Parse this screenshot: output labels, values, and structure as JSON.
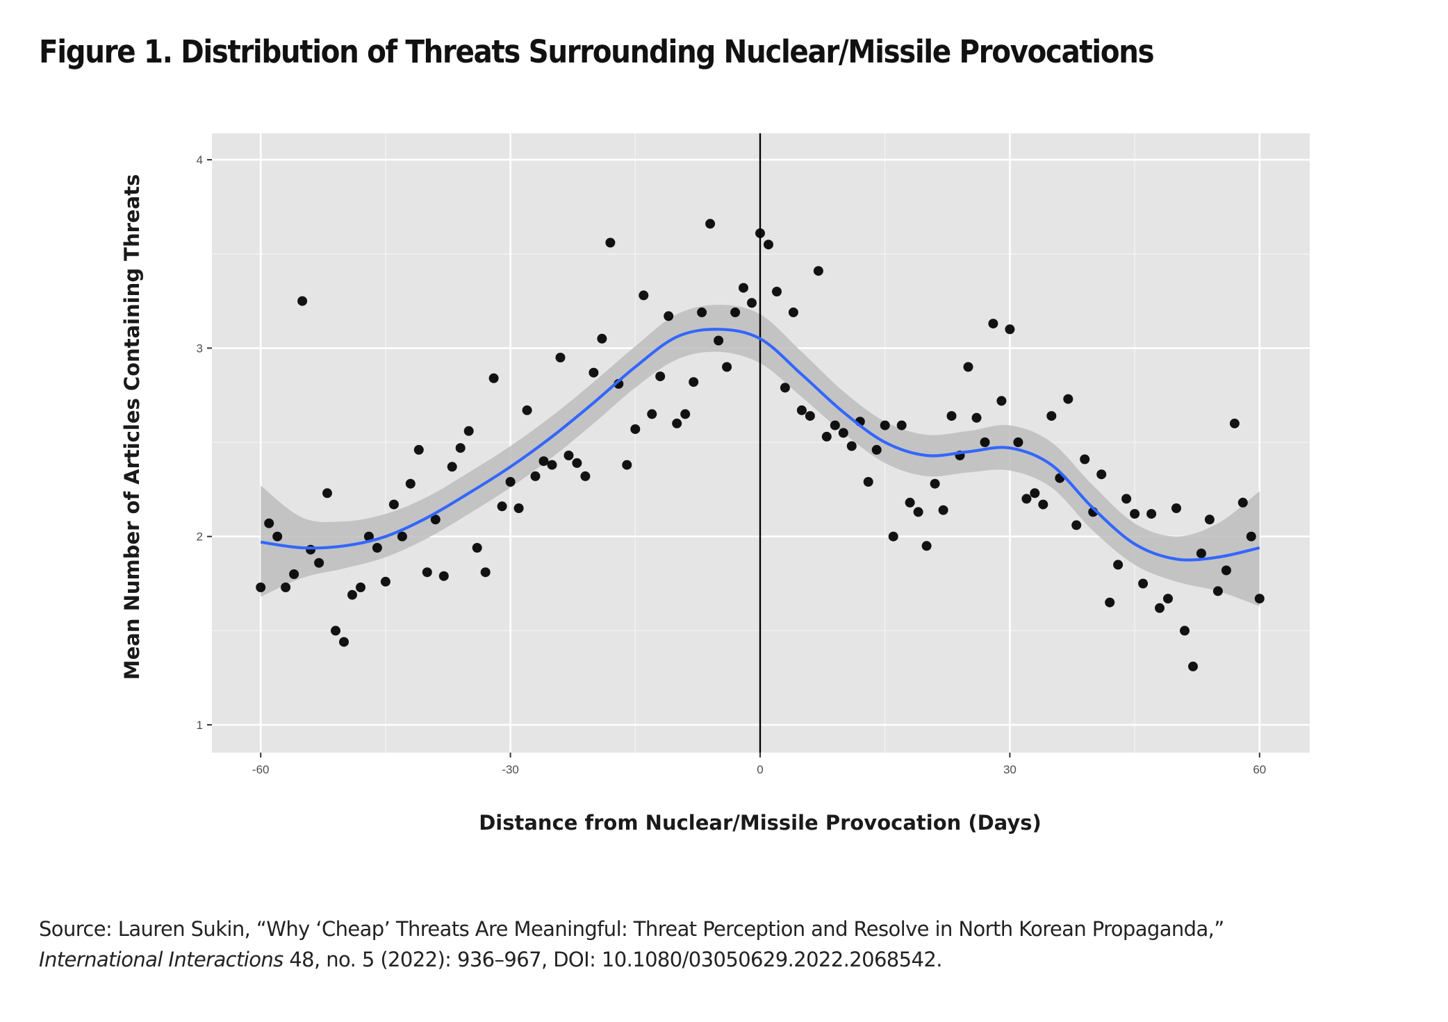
{
  "figure": {
    "title": "Figure 1. Distribution of Threats Surrounding Nuclear/Missile Provocations",
    "source_line1": "Source: Lauren Sukin, “Why ‘Cheap’ Threats Are Meaningful: Threat Perception and Resolve in North Korean Propaganda,”",
    "source_journal": "International Interactions",
    "source_line2_rest": " 48, no. 5 (2022): 936–967, DOI: 10.1080/03050629.2022.2068542."
  },
  "chart_data": {
    "type": "scatter",
    "title": "Figure 1. Distribution of Threats Surrounding Nuclear/Missile Provocations",
    "xlabel": "Distance from Nuclear/Missile Provocation (Days)",
    "ylabel": "Mean Number of Articles Containing Threats",
    "xlim": [
      -66,
      66
    ],
    "ylim": [
      0.87,
      4.15
    ],
    "xticks": [
      -60,
      -30,
      0,
      30,
      60
    ],
    "xtick_labels": [
      "-60",
      "-30",
      "0",
      "30",
      "60"
    ],
    "yticks": [
      1,
      2,
      3,
      4
    ],
    "ytick_labels": [
      "1",
      "2",
      "3",
      "4"
    ],
    "grid": true,
    "legend": "none",
    "reference_line": {
      "x": 0,
      "color": "#000000"
    },
    "colors": {
      "points": "#000000",
      "smooth": "#3366FF",
      "ribbon": "#bdbdbd",
      "panel": "#e5e5e5",
      "grid": "#ffffff"
    },
    "points": {
      "x": [
        -60,
        -59,
        -58,
        -57,
        -56,
        -55,
        -54,
        -53,
        -52,
        -51,
        -50,
        -49,
        -48,
        -47,
        -46,
        -45,
        -44,
        -43,
        -42,
        -41,
        -40,
        -39,
        -38,
        -37,
        -36,
        -35,
        -34,
        -33,
        -32,
        -31,
        -30,
        -29,
        -28,
        -27,
        -26,
        -25,
        -24,
        -23,
        -22,
        -21,
        -20,
        -19,
        -18,
        -17,
        -16,
        -15,
        -14,
        -13,
        -12,
        -11,
        -10,
        -9,
        -8,
        -7,
        -6,
        -5,
        -4,
        -3,
        -2,
        -1,
        0,
        1,
        2,
        3,
        4,
        5,
        6,
        7,
        8,
        9,
        10,
        11,
        12,
        13,
        14,
        15,
        16,
        17,
        18,
        19,
        20,
        21,
        22,
        23,
        24,
        25,
        26,
        27,
        28,
        29,
        30,
        31,
        32,
        33,
        34,
        35,
        36,
        37,
        38,
        39,
        40,
        41,
        42,
        43,
        44,
        45,
        46,
        47,
        48,
        49,
        50,
        51,
        52,
        53,
        54,
        55,
        56,
        57,
        58,
        59,
        60
      ],
      "y": [
        1.73,
        2.07,
        2.0,
        1.73,
        1.8,
        3.25,
        1.93,
        1.86,
        2.23,
        1.5,
        1.44,
        1.69,
        1.73,
        2.0,
        1.94,
        1.76,
        2.17,
        2.0,
        2.28,
        2.46,
        1.81,
        2.09,
        1.79,
        2.37,
        2.47,
        2.56,
        1.94,
        1.81,
        2.84,
        2.16,
        2.29,
        2.15,
        2.67,
        2.32,
        2.4,
        2.38,
        2.95,
        2.43,
        2.39,
        2.32,
        2.87,
        3.05,
        3.56,
        2.81,
        2.38,
        2.57,
        3.28,
        2.65,
        2.85,
        3.17,
        2.6,
        2.65,
        2.82,
        3.19,
        3.66,
        3.04,
        2.9,
        3.19,
        3.32,
        3.24,
        3.61,
        3.55,
        3.3,
        2.79,
        3.19,
        2.67,
        2.64,
        3.41,
        2.53,
        2.59,
        2.55,
        2.48,
        2.61,
        2.29,
        2.46,
        2.59,
        2.0,
        2.59,
        2.18,
        2.13,
        1.95,
        2.28,
        2.14,
        2.64,
        2.43,
        2.9,
        2.63,
        2.5,
        3.13,
        2.72,
        3.1,
        2.5,
        2.2,
        2.23,
        2.17,
        2.64,
        2.31,
        2.73,
        2.06,
        2.41,
        2.13,
        2.33,
        1.65,
        1.85,
        2.2,
        2.12,
        1.75,
        2.12,
        1.62,
        1.67,
        2.15,
        1.5,
        1.31,
        1.91,
        2.09,
        1.71,
        1.82,
        2.6,
        2.18,
        2.0,
        1.67
      ]
    },
    "smooth": {
      "method": "loess",
      "x": [
        -60,
        -55,
        -50,
        -45,
        -40,
        -35,
        -30,
        -25,
        -20,
        -15,
        -10,
        -5,
        0,
        5,
        10,
        15,
        20,
        25,
        30,
        35,
        40,
        45,
        50,
        55,
        60
      ],
      "y": [
        1.97,
        1.94,
        1.95,
        2.0,
        2.1,
        2.23,
        2.37,
        2.53,
        2.71,
        2.9,
        3.06,
        3.1,
        3.05,
        2.86,
        2.66,
        2.5,
        2.43,
        2.45,
        2.47,
        2.38,
        2.15,
        1.96,
        1.88,
        1.89,
        1.94
      ],
      "lower": [
        1.68,
        1.78,
        1.83,
        1.89,
        1.99,
        2.12,
        2.26,
        2.42,
        2.6,
        2.79,
        2.94,
        2.98,
        2.92,
        2.74,
        2.55,
        2.39,
        2.32,
        2.34,
        2.35,
        2.26,
        2.03,
        1.85,
        1.76,
        1.71,
        1.63
      ],
      "upper": [
        2.27,
        2.1,
        2.08,
        2.12,
        2.21,
        2.34,
        2.48,
        2.64,
        2.82,
        3.01,
        3.18,
        3.23,
        3.18,
        2.98,
        2.77,
        2.61,
        2.54,
        2.56,
        2.59,
        2.5,
        2.27,
        2.07,
        2.0,
        2.07,
        2.24
      ]
    }
  }
}
